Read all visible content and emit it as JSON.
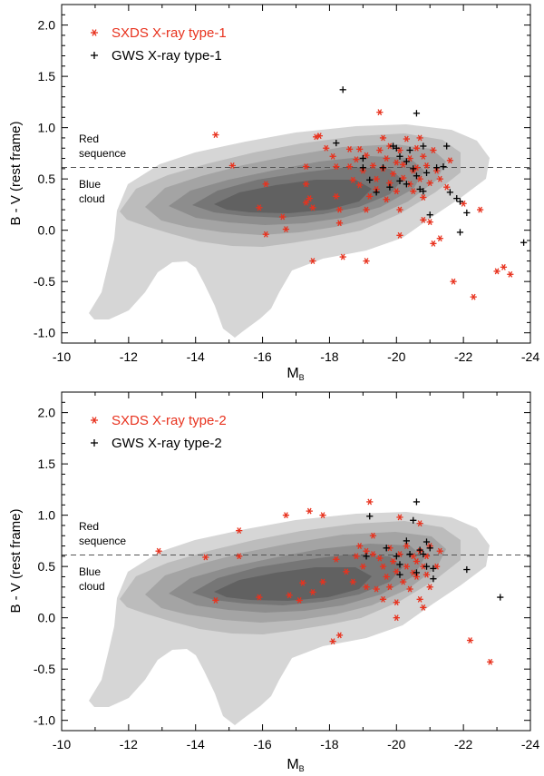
{
  "chart_data": [
    {
      "type": "scatter",
      "panel": "top",
      "xlabel": "M",
      "xlabel_sub": "B",
      "ylabel": "B - V (rest frame)",
      "xlim": [
        -10,
        -24
      ],
      "ylim": [
        -1.1,
        2.2
      ],
      "xticks": [
        -10,
        -12,
        -14,
        -16,
        -18,
        -20,
        -22,
        -24
      ],
      "yticks": [
        -1.0,
        -0.5,
        0.0,
        0.5,
        1.0,
        1.5,
        2.0
      ],
      "xtick_labels": [
        "-10",
        "-12",
        "-14",
        "-16",
        "-18",
        "-20",
        "-22",
        "-24"
      ],
      "ytick_labels": [
        "-1.0",
        "-0.5",
        "0.0",
        "0.5",
        "1.0",
        "1.5",
        "2.0"
      ],
      "divider_y": 0.6,
      "region_labels": {
        "red": [
          "Red",
          "sequence"
        ],
        "blue": [
          "Blue",
          "cloud"
        ]
      },
      "legend": [
        {
          "label": "SXDS X-ray type-1",
          "color": "#e8321e",
          "marker": "asterisk"
        },
        {
          "label": "GWS X-ray type-1",
          "color": "#000000",
          "marker": "plus"
        }
      ],
      "series": [
        {
          "name": "SXDS X-ray type-1",
          "marker": "asterisk",
          "color": "#e8321e",
          "points": [
            [
              -14.6,
              0.93
            ],
            [
              -15.1,
              0.63
            ],
            [
              -16.1,
              0.45
            ],
            [
              -15.9,
              0.22
            ],
            [
              -16.1,
              -0.04
            ],
            [
              -16.6,
              0.13
            ],
            [
              -16.7,
              0.01
            ],
            [
              -17.3,
              0.62
            ],
            [
              -17.3,
              0.45
            ],
            [
              -17.3,
              0.27
            ],
            [
              -17.4,
              0.31
            ],
            [
              -17.5,
              0.22
            ],
            [
              -17.5,
              -0.3
            ],
            [
              -17.6,
              0.91
            ],
            [
              -17.7,
              0.92
            ],
            [
              -17.9,
              0.8
            ],
            [
              -18.1,
              0.72
            ],
            [
              -18.2,
              0.62
            ],
            [
              -18.2,
              0.33
            ],
            [
              -18.3,
              0.2
            ],
            [
              -18.3,
              0.07
            ],
            [
              -18.6,
              0.79
            ],
            [
              -18.6,
              0.62
            ],
            [
              -18.4,
              -0.26
            ],
            [
              -18.7,
              0.49
            ],
            [
              -18.8,
              0.69
            ],
            [
              -18.9,
              0.79
            ],
            [
              -18.9,
              0.44
            ],
            [
              -19.0,
              0.58
            ],
            [
              -19.1,
              0.2
            ],
            [
              -19.1,
              -0.3
            ],
            [
              -19.1,
              0.73
            ],
            [
              -19.2,
              0.33
            ],
            [
              -19.3,
              0.63
            ],
            [
              -19.4,
              0.5
            ],
            [
              -19.4,
              0.4
            ],
            [
              -19.5,
              0.78
            ],
            [
              -19.5,
              1.15
            ],
            [
              -19.6,
              0.9
            ],
            [
              -19.6,
              0.6
            ],
            [
              -19.7,
              0.7
            ],
            [
              -19.7,
              0.3
            ],
            [
              -19.8,
              0.46
            ],
            [
              -19.8,
              0.82
            ],
            [
              -19.9,
              0.55
            ],
            [
              -20.0,
              0.66
            ],
            [
              -20.0,
              0.38
            ],
            [
              -20.1,
              0.78
            ],
            [
              -20.1,
              0.2
            ],
            [
              -20.1,
              -0.05
            ],
            [
              -20.2,
              0.64
            ],
            [
              -20.2,
              0.51
            ],
            [
              -20.3,
              0.89
            ],
            [
              -20.4,
              0.7
            ],
            [
              -20.4,
              0.45
            ],
            [
              -20.5,
              0.58
            ],
            [
              -20.5,
              0.38
            ],
            [
              -20.6,
              0.8
            ],
            [
              -20.6,
              0.61
            ],
            [
              -20.7,
              0.9
            ],
            [
              -20.7,
              0.5
            ],
            [
              -20.8,
              0.72
            ],
            [
              -20.8,
              0.32
            ],
            [
              -20.8,
              0.1
            ],
            [
              -20.9,
              0.63
            ],
            [
              -21.0,
              0.46
            ],
            [
              -21.0,
              0.08
            ],
            [
              -21.1,
              0.78
            ],
            [
              -21.1,
              -0.13
            ],
            [
              -21.2,
              0.58
            ],
            [
              -21.3,
              0.5
            ],
            [
              -21.3,
              -0.08
            ],
            [
              -21.5,
              0.42
            ],
            [
              -21.6,
              0.68
            ],
            [
              -21.7,
              -0.5
            ],
            [
              -22.0,
              0.26
            ],
            [
              -22.3,
              -0.65
            ],
            [
              -22.5,
              0.2
            ],
            [
              -23.0,
              -0.4
            ],
            [
              -23.2,
              -0.36
            ],
            [
              -23.4,
              -0.43
            ]
          ]
        },
        {
          "name": "GWS X-ray type-1",
          "marker": "plus",
          "color": "#000000",
          "points": [
            [
              -18.4,
              1.37
            ],
            [
              -18.2,
              0.85
            ],
            [
              -19.0,
              0.7
            ],
            [
              -19.0,
              0.61
            ],
            [
              -19.2,
              0.49
            ],
            [
              -19.4,
              0.37
            ],
            [
              -19.6,
              0.61
            ],
            [
              -19.8,
              0.42
            ],
            [
              -19.9,
              0.82
            ],
            [
              -20.0,
              0.8
            ],
            [
              -20.1,
              0.72
            ],
            [
              -20.1,
              0.48
            ],
            [
              -20.3,
              0.67
            ],
            [
              -20.3,
              0.45
            ],
            [
              -20.4,
              0.78
            ],
            [
              -20.5,
              0.6
            ],
            [
              -20.6,
              1.14
            ],
            [
              -20.6,
              0.53
            ],
            [
              -20.7,
              0.4
            ],
            [
              -20.8,
              0.82
            ],
            [
              -20.8,
              0.38
            ],
            [
              -20.9,
              0.56
            ],
            [
              -21.0,
              0.15
            ],
            [
              -21.2,
              0.61
            ],
            [
              -21.4,
              0.62
            ],
            [
              -21.5,
              0.82
            ],
            [
              -21.6,
              0.37
            ],
            [
              -21.8,
              0.31
            ],
            [
              -21.9,
              0.28
            ],
            [
              -21.9,
              -0.02
            ],
            [
              -22.1,
              0.17
            ],
            [
              -23.8,
              -0.12
            ]
          ]
        }
      ]
    },
    {
      "type": "scatter",
      "panel": "bottom",
      "xlabel": "M",
      "xlabel_sub": "B",
      "ylabel": "B - V (rest frame)",
      "xlim": [
        -10,
        -24
      ],
      "ylim": [
        -1.1,
        2.2
      ],
      "xticks": [
        -10,
        -12,
        -14,
        -16,
        -18,
        -20,
        -22,
        -24
      ],
      "yticks": [
        -1.0,
        -0.5,
        0.0,
        0.5,
        1.0,
        1.5,
        2.0
      ],
      "xtick_labels": [
        "-10",
        "-12",
        "-14",
        "-16",
        "-18",
        "-20",
        "-22",
        "-24"
      ],
      "ytick_labels": [
        "-1.0",
        "-0.5",
        "0.0",
        "0.5",
        "1.0",
        "1.5",
        "2.0"
      ],
      "divider_y": 0.6,
      "region_labels": {
        "red": [
          "Red",
          "sequence"
        ],
        "blue": [
          "Blue",
          "cloud"
        ]
      },
      "legend": [
        {
          "label": "SXDS X-ray type-2",
          "color": "#e8321e",
          "marker": "asterisk"
        },
        {
          "label": "GWS X-ray type-2",
          "color": "#000000",
          "marker": "plus"
        }
      ],
      "series": [
        {
          "name": "SXDS X-ray type-2",
          "marker": "asterisk",
          "color": "#e8321e",
          "points": [
            [
              -12.9,
              0.65
            ],
            [
              -14.3,
              0.59
            ],
            [
              -14.6,
              0.17
            ],
            [
              -15.3,
              0.85
            ],
            [
              -15.3,
              0.6
            ],
            [
              -15.9,
              0.2
            ],
            [
              -16.7,
              1.0
            ],
            [
              -16.8,
              0.22
            ],
            [
              -17.1,
              0.17
            ],
            [
              -17.2,
              0.34
            ],
            [
              -17.4,
              1.04
            ],
            [
              -17.5,
              0.25
            ],
            [
              -17.8,
              1.0
            ],
            [
              -17.8,
              0.35
            ],
            [
              -18.1,
              -0.23
            ],
            [
              -18.2,
              0.57
            ],
            [
              -18.3,
              -0.17
            ],
            [
              -18.5,
              0.45
            ],
            [
              -18.7,
              0.35
            ],
            [
              -18.8,
              0.6
            ],
            [
              -18.9,
              0.7
            ],
            [
              -19.0,
              0.5
            ],
            [
              -19.1,
              0.65
            ],
            [
              -19.1,
              0.3
            ],
            [
              -19.2,
              1.13
            ],
            [
              -19.3,
              0.8
            ],
            [
              -19.3,
              0.62
            ],
            [
              -19.4,
              0.28
            ],
            [
              -19.5,
              0.58
            ],
            [
              -19.6,
              0.5
            ],
            [
              -19.6,
              0.18
            ],
            [
              -19.7,
              0.4
            ],
            [
              -19.8,
              0.68
            ],
            [
              -19.8,
              0.3
            ],
            [
              -19.9,
              0.55
            ],
            [
              -20.0,
              0.45
            ],
            [
              -20.0,
              0.15
            ],
            [
              -20.0,
              0.0
            ],
            [
              -20.1,
              0.98
            ],
            [
              -20.1,
              0.62
            ],
            [
              -20.2,
              0.35
            ],
            [
              -20.3,
              0.7
            ],
            [
              -20.3,
              0.5
            ],
            [
              -20.4,
              0.28
            ],
            [
              -20.5,
              0.6
            ],
            [
              -20.5,
              0.44
            ],
            [
              -20.6,
              0.55
            ],
            [
              -20.6,
              0.4
            ],
            [
              -20.7,
              0.92
            ],
            [
              -20.7,
              0.65
            ],
            [
              -20.7,
              0.18
            ],
            [
              -20.8,
              0.5
            ],
            [
              -20.8,
              0.1
            ],
            [
              -20.9,
              0.6
            ],
            [
              -20.9,
              0.42
            ],
            [
              -21.0,
              0.7
            ],
            [
              -21.0,
              0.3
            ],
            [
              -21.2,
              0.5
            ],
            [
              -21.3,
              0.65
            ],
            [
              -22.2,
              -0.22
            ],
            [
              -22.8,
              -0.43
            ]
          ]
        },
        {
          "name": "GWS X-ray type-2",
          "marker": "plus",
          "color": "#000000",
          "points": [
            [
              -19.1,
              0.6
            ],
            [
              -19.2,
              0.99
            ],
            [
              -19.7,
              0.68
            ],
            [
              -20.0,
              0.6
            ],
            [
              -20.1,
              0.52
            ],
            [
              -20.1,
              0.42
            ],
            [
              -20.3,
              0.75
            ],
            [
              -20.4,
              0.62
            ],
            [
              -20.5,
              0.95
            ],
            [
              -20.6,
              1.13
            ],
            [
              -20.6,
              0.44
            ],
            [
              -20.7,
              0.66
            ],
            [
              -20.8,
              0.62
            ],
            [
              -20.9,
              0.74
            ],
            [
              -20.9,
              0.5
            ],
            [
              -21.0,
              0.68
            ],
            [
              -21.1,
              0.48
            ],
            [
              -21.1,
              0.38
            ],
            [
              -22.1,
              0.47
            ],
            [
              -23.1,
              0.2
            ]
          ]
        }
      ]
    }
  ]
}
